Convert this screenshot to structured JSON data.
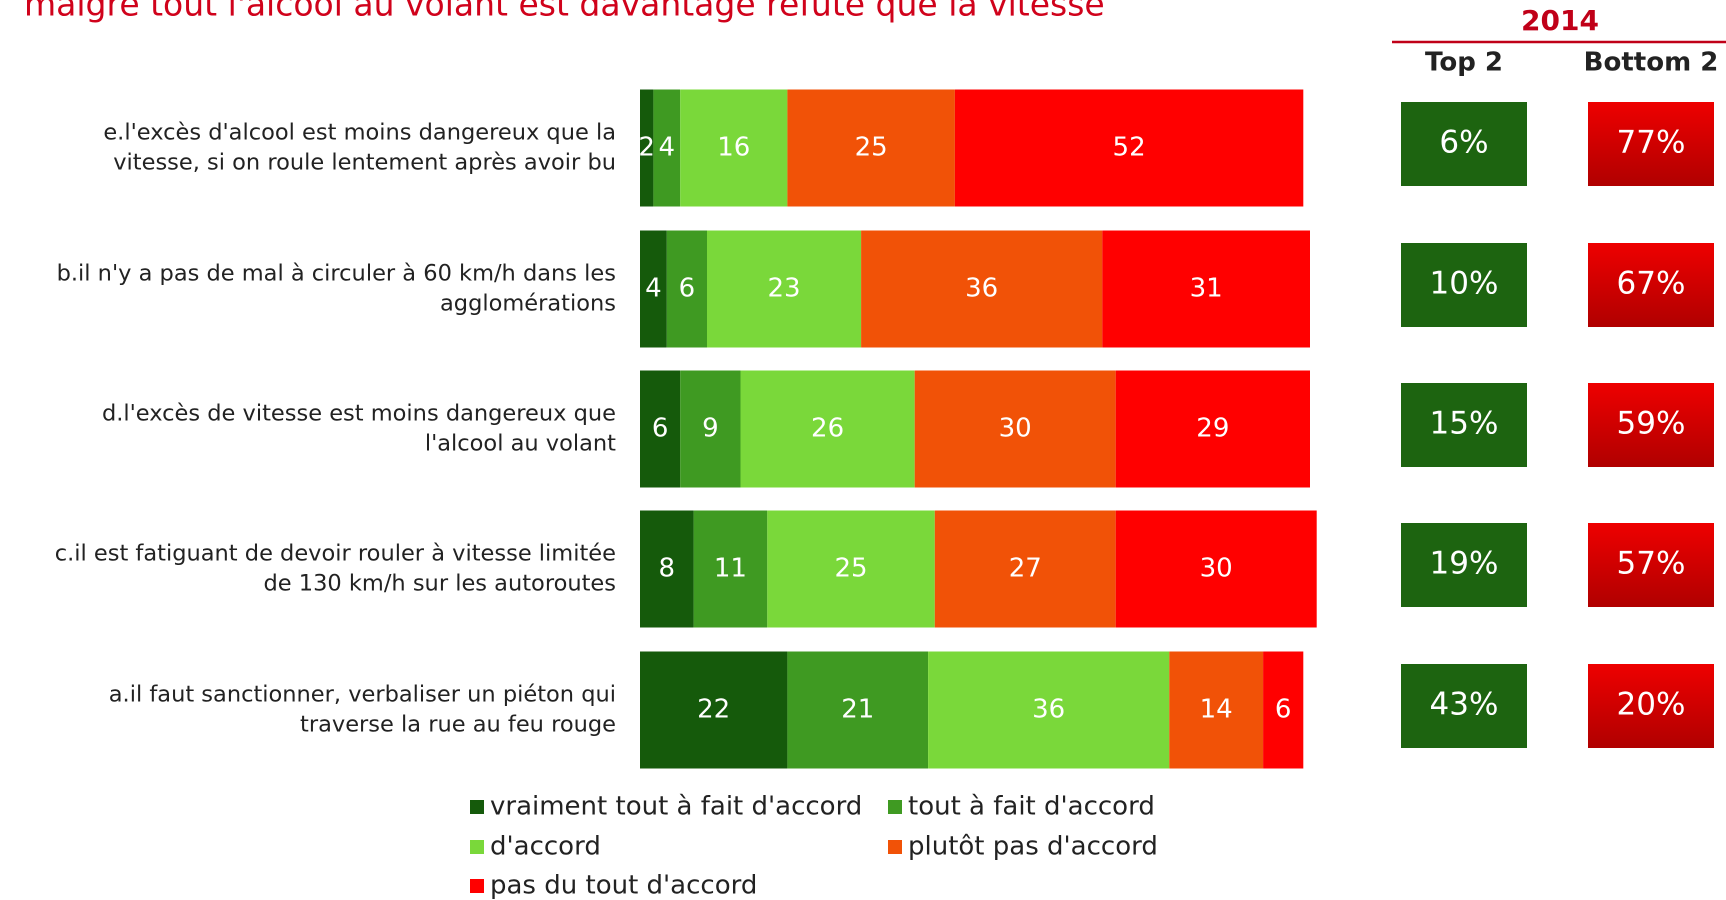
{
  "chart_data": {
    "type": "stacked-barh",
    "title": "malgré tout l'alcool au volant est davantage réfuté que la vitesse",
    "categories": [
      [
        "e.l'excès d'alcool est moins dangereux que la",
        "vitesse, si on roule lentement après avoir bu"
      ],
      [
        "b.il n'y a pas de mal à circuler à 60 km/h dans les",
        "agglomérations"
      ],
      [
        "d.l'excès de vitesse est moins dangereux que",
        "l'alcool au volant"
      ],
      [
        "c.il est fatiguant de devoir rouler à vitesse limitée",
        "de 130 km/h sur les autoroutes"
      ],
      [
        "a.il faut sanctionner, verbaliser un piéton qui",
        "traverse la rue au feu rouge"
      ]
    ],
    "series": [
      {
        "name": "vraiment tout à fait d'accord",
        "color": "#155a0b",
        "values": [
          2,
          4,
          6,
          8,
          22
        ]
      },
      {
        "name": "tout à fait d'accord",
        "color": "#3f9a22",
        "values": [
          4,
          6,
          9,
          11,
          21
        ]
      },
      {
        "name": "d'accord",
        "color": "#7ad83a",
        "values": [
          16,
          23,
          26,
          25,
          36
        ]
      },
      {
        "name": "plutôt pas d'accord",
        "color": "#f15207",
        "values": [
          25,
          36,
          30,
          27,
          14
        ]
      },
      {
        "name": "pas du tout d'accord",
        "color": "#ff0000",
        "values": [
          52,
          31,
          29,
          30,
          6
        ]
      }
    ],
    "xlim": [
      0,
      100
    ],
    "summary": {
      "year": "2014",
      "columns": [
        {
          "name": "Top 2",
          "color": "#1d6410",
          "values": [
            6,
            10,
            15,
            19,
            43
          ],
          "value_labels": [
            "6%",
            "10%",
            "15%",
            "19%",
            "43%"
          ]
        },
        {
          "name": "Bottom 2",
          "color": "#d90000",
          "values": [
            77,
            67,
            59,
            57,
            20
          ],
          "value_labels": [
            "77%",
            "67%",
            "59%",
            "57%",
            "20%"
          ]
        }
      ]
    }
  }
}
